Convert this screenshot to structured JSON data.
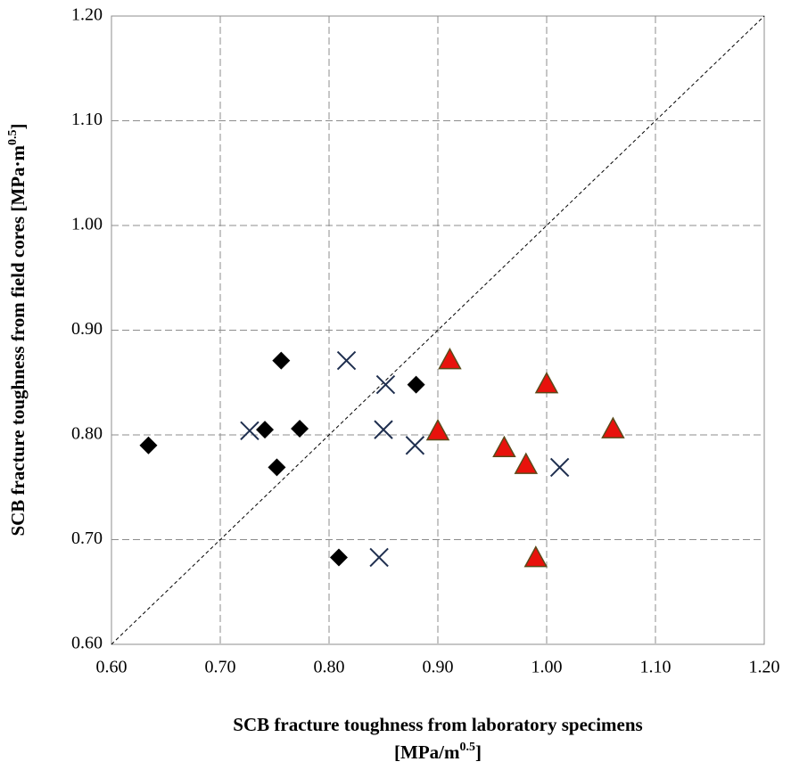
{
  "chart_data": {
    "type": "scatter",
    "xlabel": [
      "SCB fracture toughness from laboratory specimens",
      "[MPa/m",
      "0.5",
      "]"
    ],
    "ylabel": [
      "SCB  fracture toughness from field cores [MPa·m",
      "0.5",
      "]"
    ],
    "xlim": [
      0.6,
      1.2
    ],
    "ylim": [
      0.6,
      1.2
    ],
    "xticks": [
      {
        "value": 0.6,
        "label": "0.60"
      },
      {
        "value": 0.7,
        "label": "0.70"
      },
      {
        "value": 0.8,
        "label": "0.80"
      },
      {
        "value": 0.9,
        "label": "0.90"
      },
      {
        "value": 1.0,
        "label": "1.00"
      },
      {
        "value": 1.1,
        "label": "1.10"
      },
      {
        "value": 1.2,
        "label": "1.20"
      }
    ],
    "yticks": [
      {
        "value": 0.6,
        "label": "0.60"
      },
      {
        "value": 0.7,
        "label": "0.70"
      },
      {
        "value": 0.8,
        "label": "0.80"
      },
      {
        "value": 0.9,
        "label": "0.90"
      },
      {
        "value": 1.0,
        "label": "1.00"
      },
      {
        "value": 1.1,
        "label": "1.10"
      },
      {
        "value": 1.2,
        "label": "1.20"
      }
    ],
    "grid": true,
    "equality_line": true,
    "series": [
      {
        "marker": "diamond",
        "color": "#000000",
        "x": [
          0.634,
          0.756,
          0.741,
          0.773,
          0.752,
          0.88,
          0.809
        ],
        "values": [
          0.79,
          0.871,
          0.805,
          0.806,
          0.769,
          0.848,
          0.683
        ]
      },
      {
        "marker": "x",
        "color": "#1f2f4f",
        "x": [
          0.816,
          0.852,
          0.727,
          0.85,
          0.879,
          0.846,
          1.012
        ],
        "values": [
          0.871,
          0.848,
          0.804,
          0.805,
          0.79,
          0.683,
          0.769
        ]
      },
      {
        "marker": "triangle",
        "color": "#e8120c",
        "x": [
          0.911,
          1.0,
          0.9,
          0.961,
          0.981,
          0.99,
          1.061
        ],
        "values": [
          0.871,
          0.848,
          0.803,
          0.787,
          0.771,
          0.682,
          0.805
        ]
      }
    ]
  }
}
